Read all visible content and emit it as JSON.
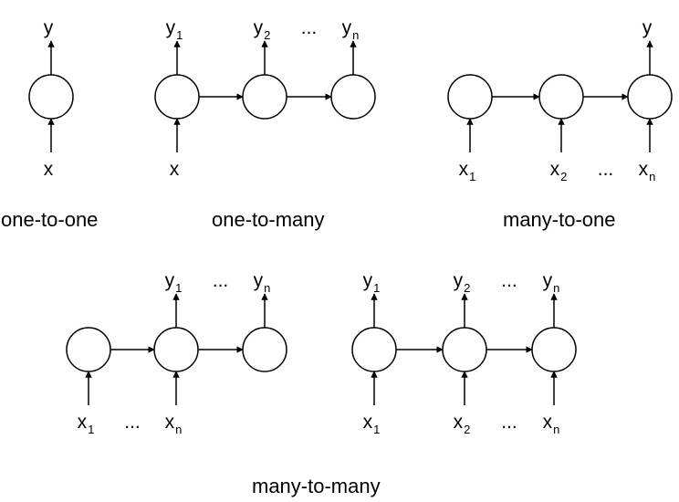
{
  "labels": {
    "y": "y",
    "x": "x",
    "sub_1": "1",
    "sub_2": "2",
    "sub_n": "n",
    "ellipsis": "..."
  },
  "captions": {
    "one_to_one": "one-to-one",
    "one_to_many": "one-to-many",
    "many_to_one": "many-to-one",
    "many_to_many": "many-to-many"
  },
  "diagrams": [
    {
      "id": "one-to-one",
      "nodes": [
        {
          "in": {
            "sym": "x",
            "sub": ""
          },
          "out": {
            "sym": "y",
            "sub": ""
          }
        }
      ],
      "in_gaps": [],
      "out_gaps": []
    },
    {
      "id": "one-to-many",
      "nodes": [
        {
          "in": {
            "sym": "x",
            "sub": ""
          },
          "out": {
            "sym": "y",
            "sub": "1"
          }
        },
        {
          "in": null,
          "out": {
            "sym": "y",
            "sub": "2"
          }
        },
        {
          "in": null,
          "out": {
            "sym": "y",
            "sub": "n"
          }
        }
      ],
      "in_gaps": [],
      "out_gaps": [
        "2-3"
      ]
    },
    {
      "id": "many-to-one",
      "nodes": [
        {
          "in": {
            "sym": "x",
            "sub": "1"
          },
          "out": null
        },
        {
          "in": {
            "sym": "x",
            "sub": "2"
          },
          "out": null
        },
        {
          "in": {
            "sym": "x",
            "sub": "n"
          },
          "out": {
            "sym": "y",
            "sub": ""
          }
        }
      ],
      "in_gaps": [
        "2-3"
      ],
      "out_gaps": []
    },
    {
      "id": "many-to-many-delayed",
      "nodes": [
        {
          "in": {
            "sym": "x",
            "sub": "1"
          },
          "out": null
        },
        {
          "in": {
            "sym": "x",
            "sub": "n"
          },
          "out": {
            "sym": "y",
            "sub": "1"
          }
        },
        {
          "in": null,
          "out": {
            "sym": "y",
            "sub": "n"
          }
        }
      ],
      "in_gaps": [
        "1-2"
      ],
      "out_gaps": [
        "2-3"
      ]
    },
    {
      "id": "many-to-many-synced",
      "nodes": [
        {
          "in": {
            "sym": "x",
            "sub": "1"
          },
          "out": {
            "sym": "y",
            "sub": "1"
          }
        },
        {
          "in": {
            "sym": "x",
            "sub": "2"
          },
          "out": {
            "sym": "y",
            "sub": "2"
          }
        },
        {
          "in": {
            "sym": "x",
            "sub": "n"
          },
          "out": {
            "sym": "y",
            "sub": "n"
          }
        }
      ],
      "in_gaps": [
        "2-3"
      ],
      "out_gaps": [
        "2-3"
      ]
    }
  ]
}
